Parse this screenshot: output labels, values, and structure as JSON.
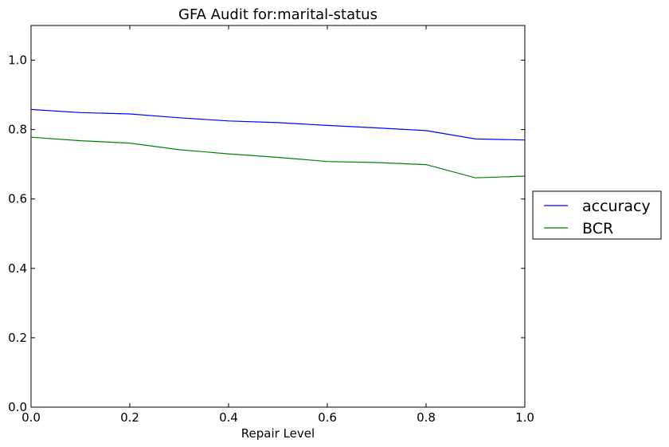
{
  "chart_data": {
    "type": "line",
    "title": "GFA Audit for:marital-status",
    "xlabel": "Repair Level",
    "ylabel": "",
    "xlim": [
      0.0,
      1.0
    ],
    "ylim": [
      0.0,
      1.1
    ],
    "xticks": [
      "0.0",
      "0.2",
      "0.4",
      "0.6",
      "0.8",
      "1.0"
    ],
    "yticks": [
      "0.0",
      "0.2",
      "0.4",
      "0.6",
      "0.8",
      "1.0"
    ],
    "x": [
      0.0,
      0.1,
      0.2,
      0.3,
      0.4,
      0.5,
      0.6,
      0.7,
      0.8,
      0.9,
      1.0
    ],
    "series": [
      {
        "name": "accuracy",
        "color": "#0000ff",
        "values": [
          0.858,
          0.849,
          0.845,
          0.834,
          0.825,
          0.82,
          0.812,
          0.805,
          0.797,
          0.773,
          0.77
        ]
      },
      {
        "name": "BCR",
        "color": "#008000",
        "values": [
          0.778,
          0.768,
          0.761,
          0.742,
          0.73,
          0.72,
          0.708,
          0.705,
          0.699,
          0.661,
          0.666
        ]
      }
    ],
    "grid": false,
    "legend_position": "right"
  }
}
